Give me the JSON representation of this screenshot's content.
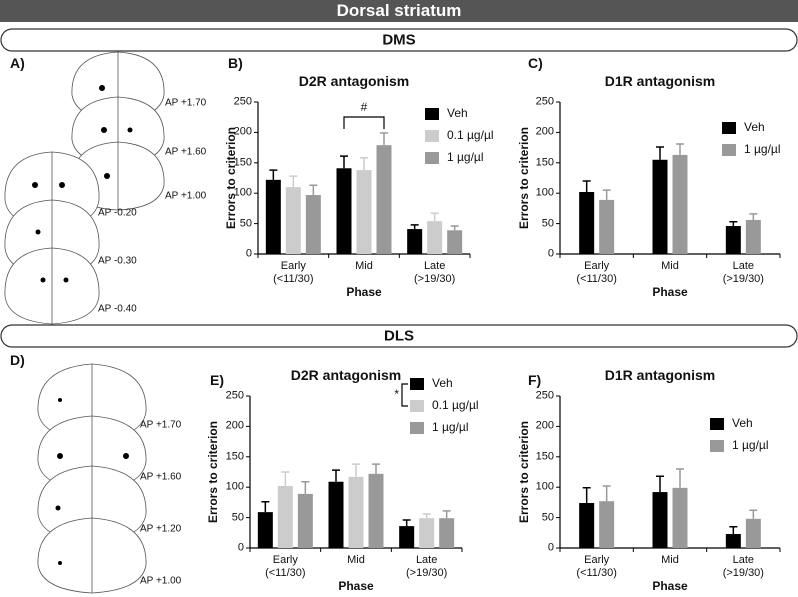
{
  "header": {
    "title": "Dorsal striatum"
  },
  "sections": [
    "DMS",
    "DLS"
  ],
  "panels": [
    "A)",
    "B)",
    "C)",
    "D)",
    "E)",
    "F)"
  ],
  "atlas": [
    [
      "AP +1.70",
      "AP +1.60",
      "AP +1.00",
      "AP -0.20",
      "AP -0.30",
      "AP -0.40"
    ],
    [
      "AP +1.70",
      "AP +1.60",
      "AP +1.20",
      "AP +1.00"
    ]
  ],
  "chart_data": [
    {
      "type": "bar",
      "title": "D2R antagonism",
      "x_label": "Phase",
      "y_label": "Errors to criterion",
      "categories": [
        "Early\n(<11/30)",
        "Mid",
        "Late\n(>19/30)"
      ],
      "ylim": [
        0,
        250
      ],
      "yticks": [
        0,
        50,
        100,
        150,
        200,
        250
      ],
      "legend": "upper right",
      "annotation": "#",
      "series": [
        {
          "name": "Veh",
          "color": "#000000",
          "values": [
            122,
            141,
            41
          ],
          "errors": [
            16,
            20,
            7
          ]
        },
        {
          "name": "0.1 µg/µl",
          "color": "#cccccc",
          "values": [
            110,
            138,
            54
          ],
          "errors": [
            18,
            20,
            13
          ]
        },
        {
          "name": "1 µg/µl",
          "color": "#999999",
          "values": [
            97,
            179,
            39
          ],
          "errors": [
            16,
            20,
            7
          ]
        }
      ]
    },
    {
      "type": "bar",
      "title": "D1R antagonism",
      "x_label": "Phase",
      "y_label": "Errors to criterion",
      "categories": [
        "Early\n(<11/30)",
        "Mid",
        "Late\n(>19/30)"
      ],
      "ylim": [
        0,
        250
      ],
      "yticks": [
        0,
        50,
        100,
        150,
        200,
        250
      ],
      "legend": "upper right",
      "series": [
        {
          "name": "Veh",
          "color": "#000000",
          "values": [
            102,
            155,
            46
          ],
          "errors": [
            18,
            21,
            7
          ]
        },
        {
          "name": "1 µg/µl",
          "color": "#999999",
          "values": [
            89,
            163,
            56
          ],
          "errors": [
            16,
            18,
            10
          ]
        }
      ]
    },
    {
      "type": "bar",
      "title": "D2R antagonism",
      "x_label": "Phase",
      "y_label": "Errors to criterion",
      "categories": [
        "Early\n(<11/30)",
        "Mid",
        "Late\n(>19/30)"
      ],
      "ylim": [
        0,
        250
      ],
      "yticks": [
        0,
        50,
        100,
        150,
        200,
        250
      ],
      "legend": "upper right",
      "annotation": "*",
      "series": [
        {
          "name": "Veh",
          "color": "#000000",
          "values": [
            59,
            109,
            36
          ],
          "errors": [
            17,
            19,
            10
          ]
        },
        {
          "name": "0.1 µg/µl",
          "color": "#cccccc",
          "values": [
            102,
            117,
            49
          ],
          "errors": [
            23,
            21,
            7
          ]
        },
        {
          "name": "1 µg/µl",
          "color": "#999999",
          "values": [
            89,
            122,
            49
          ],
          "errors": [
            20,
            16,
            12
          ]
        }
      ]
    },
    {
      "type": "bar",
      "title": "D1R antagonism",
      "x_label": "Phase",
      "y_label": "Errors to criterion",
      "categories": [
        "Early\n(<11/30)",
        "Mid",
        "Late\n(>19/30)"
      ],
      "ylim": [
        0,
        250
      ],
      "yticks": [
        0,
        50,
        100,
        150,
        200,
        250
      ],
      "legend": "upper right",
      "series": [
        {
          "name": "Veh",
          "color": "#000000",
          "values": [
            74,
            92,
            23
          ],
          "errors": [
            25,
            26,
            12
          ]
        },
        {
          "name": "1 µg/µl",
          "color": "#999999",
          "values": [
            77,
            99,
            48
          ],
          "errors": [
            25,
            31,
            14
          ]
        }
      ]
    }
  ]
}
